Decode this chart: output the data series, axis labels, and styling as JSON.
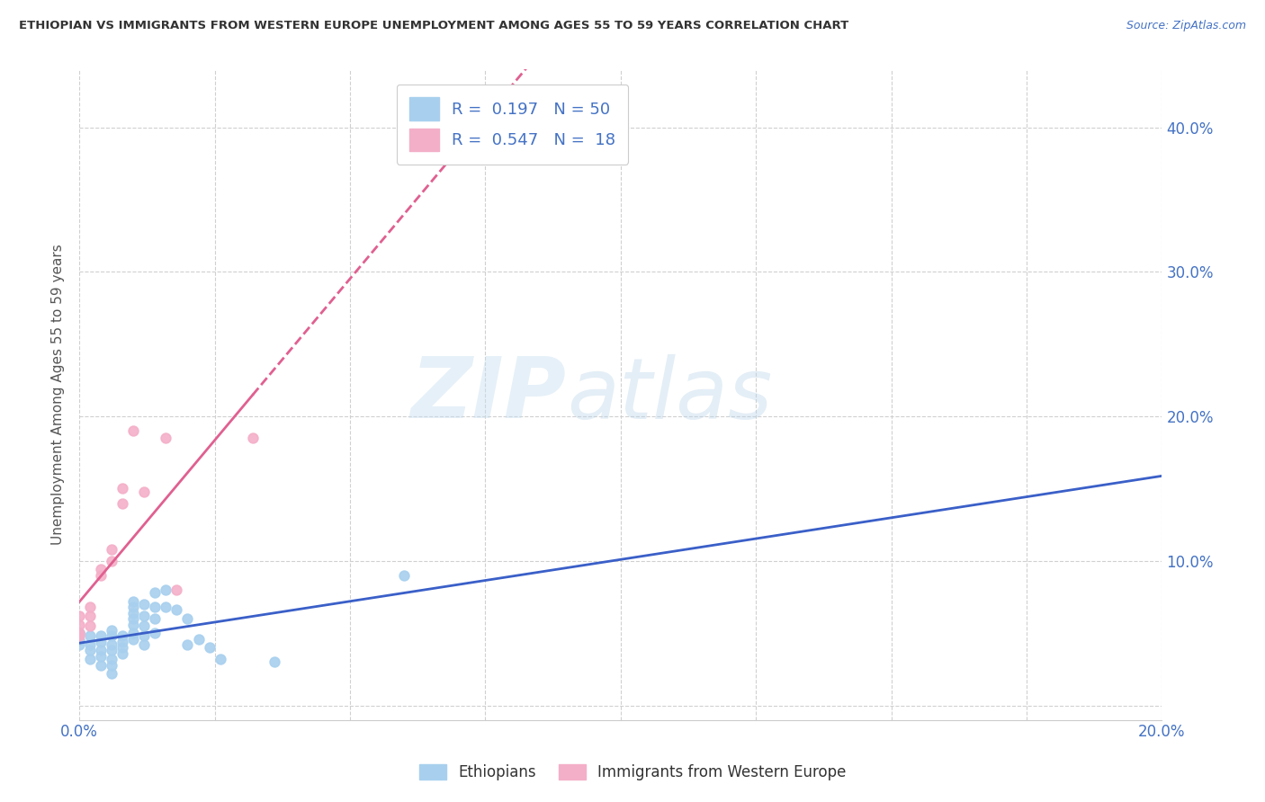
{
  "title": "ETHIOPIAN VS IMMIGRANTS FROM WESTERN EUROPE UNEMPLOYMENT AMONG AGES 55 TO 59 YEARS CORRELATION CHART",
  "source": "Source: ZipAtlas.com",
  "ylabel": "Unemployment Among Ages 55 to 59 years",
  "xlim": [
    0.0,
    0.2
  ],
  "ylim": [
    -0.01,
    0.44
  ],
  "ytick_positions": [
    0.0,
    0.1,
    0.2,
    0.3,
    0.4
  ],
  "ytick_labels": [
    "",
    "10.0%",
    "20.0%",
    "30.0%",
    "40.0%"
  ],
  "xtick_positions": [
    0.0,
    0.025,
    0.05,
    0.075,
    0.1,
    0.125,
    0.15,
    0.175,
    0.2
  ],
  "watermark_line1": "ZIP",
  "watermark_line2": "atlas",
  "blue_color": "#a8d0ee",
  "pink_color": "#f4afc8",
  "blue_line_color": "#3a5fc8",
  "pink_line_color": "#e06090",
  "blue_scatter": [
    [
      0.0,
      0.05
    ],
    [
      0.0,
      0.05
    ],
    [
      0.0,
      0.045
    ],
    [
      0.0,
      0.042
    ],
    [
      0.002,
      0.048
    ],
    [
      0.002,
      0.042
    ],
    [
      0.002,
      0.038
    ],
    [
      0.002,
      0.032
    ],
    [
      0.004,
      0.048
    ],
    [
      0.004,
      0.044
    ],
    [
      0.004,
      0.038
    ],
    [
      0.004,
      0.034
    ],
    [
      0.004,
      0.028
    ],
    [
      0.006,
      0.052
    ],
    [
      0.006,
      0.048
    ],
    [
      0.006,
      0.042
    ],
    [
      0.006,
      0.038
    ],
    [
      0.006,
      0.032
    ],
    [
      0.006,
      0.028
    ],
    [
      0.006,
      0.022
    ],
    [
      0.008,
      0.048
    ],
    [
      0.008,
      0.044
    ],
    [
      0.008,
      0.04
    ],
    [
      0.008,
      0.036
    ],
    [
      0.01,
      0.072
    ],
    [
      0.01,
      0.068
    ],
    [
      0.01,
      0.064
    ],
    [
      0.01,
      0.06
    ],
    [
      0.01,
      0.056
    ],
    [
      0.01,
      0.05
    ],
    [
      0.01,
      0.046
    ],
    [
      0.012,
      0.07
    ],
    [
      0.012,
      0.062
    ],
    [
      0.012,
      0.055
    ],
    [
      0.012,
      0.048
    ],
    [
      0.012,
      0.042
    ],
    [
      0.014,
      0.078
    ],
    [
      0.014,
      0.068
    ],
    [
      0.014,
      0.06
    ],
    [
      0.014,
      0.05
    ],
    [
      0.016,
      0.08
    ],
    [
      0.016,
      0.068
    ],
    [
      0.018,
      0.066
    ],
    [
      0.02,
      0.06
    ],
    [
      0.02,
      0.042
    ],
    [
      0.022,
      0.046
    ],
    [
      0.024,
      0.04
    ],
    [
      0.026,
      0.032
    ],
    [
      0.036,
      0.03
    ],
    [
      0.06,
      0.09
    ]
  ],
  "pink_scatter": [
    [
      0.0,
      0.048
    ],
    [
      0.0,
      0.05
    ],
    [
      0.0,
      0.056
    ],
    [
      0.0,
      0.062
    ],
    [
      0.002,
      0.055
    ],
    [
      0.002,
      0.062
    ],
    [
      0.002,
      0.068
    ],
    [
      0.004,
      0.09
    ],
    [
      0.004,
      0.094
    ],
    [
      0.006,
      0.1
    ],
    [
      0.006,
      0.108
    ],
    [
      0.008,
      0.14
    ],
    [
      0.008,
      0.15
    ],
    [
      0.01,
      0.19
    ],
    [
      0.012,
      0.148
    ],
    [
      0.016,
      0.185
    ],
    [
      0.018,
      0.08
    ],
    [
      0.032,
      0.185
    ]
  ],
  "blue_R": 0.197,
  "blue_N": 50,
  "pink_R": 0.547,
  "pink_N": 18,
  "legend_blue_label": "Ethiopians",
  "legend_pink_label": "Immigrants from Western Europe",
  "background_color": "#ffffff",
  "grid_color": "#d0d0d0"
}
